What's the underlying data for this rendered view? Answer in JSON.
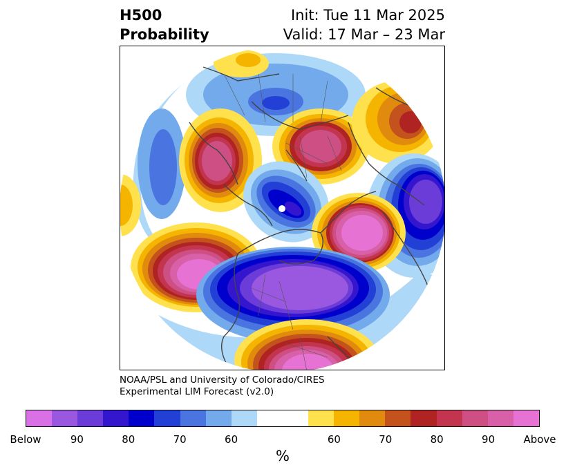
{
  "title": {
    "left_line1": "H500",
    "left_line2": "Probability",
    "right_line1": "Init: Tue 11 Mar 2025",
    "right_line2": "Valid: 17 Mar – 23 Mar"
  },
  "credit": {
    "line1": "NOAA/PSL and University of Colorado/CIRES",
    "line2": "Experimental LIM Forecast (v2.0)"
  },
  "colorbar": {
    "unit": "%",
    "colors": [
      "#d970e6",
      "#9a58e0",
      "#6b3cd8",
      "#3516cf",
      "#0000cc",
      "#2340d6",
      "#4a75e0",
      "#72aaec",
      "#aed8f7",
      "#ffffff",
      "#ffe14d",
      "#f5b400",
      "#e08a0e",
      "#c4521c",
      "#b02323",
      "#c3354e",
      "#cd4f84",
      "#d860a8",
      "#e673d4"
    ],
    "tick_labels": [
      "Below",
      "90",
      "80",
      "70",
      "60",
      "60",
      "70",
      "80",
      "90",
      "Above"
    ]
  },
  "map": {
    "projection": "north-polar-stereographic",
    "field": "500 hPa height anomaly tercile probability"
  }
}
